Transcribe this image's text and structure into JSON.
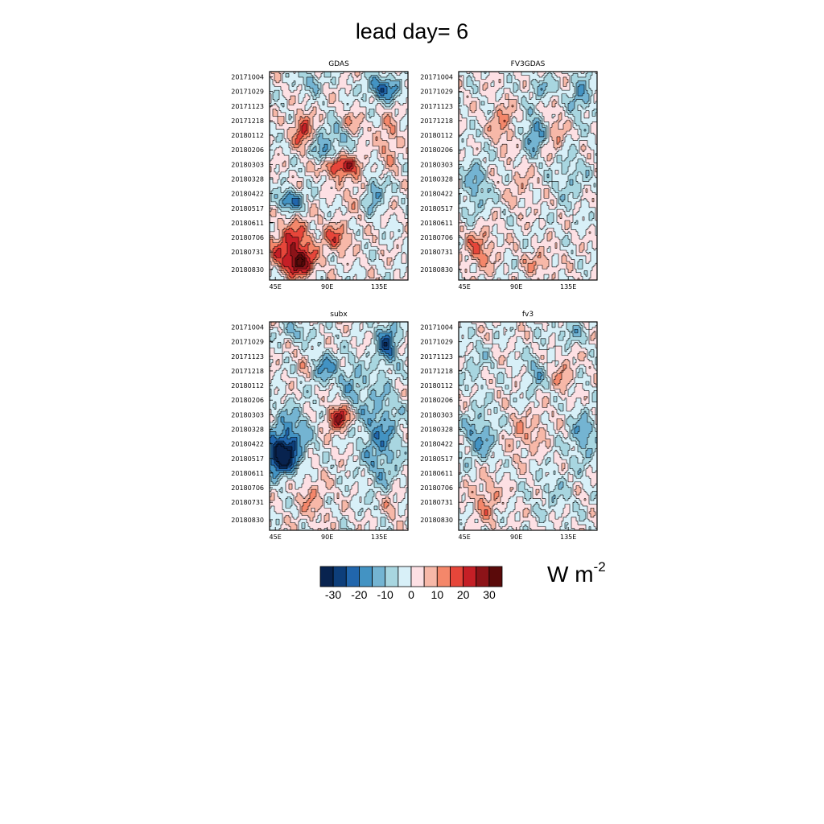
{
  "title": "lead day= 6",
  "units": {
    "base": "W m",
    "exponent": "-2"
  },
  "chart_data": {
    "type": "heatmap",
    "title": "lead day= 6",
    "x_axis": {
      "ticks": [
        "45E",
        "90E",
        "135E"
      ],
      "tick_values_deg_east": [
        45,
        90,
        135
      ],
      "range_deg_east": [
        40,
        160
      ]
    },
    "y_axis": {
      "ticks": [
        "20171004",
        "20171029",
        "20171123",
        "20171218",
        "20180112",
        "20180206",
        "20180303",
        "20180328",
        "20180422",
        "20180517",
        "20180611",
        "20180706",
        "20180731",
        "20180830"
      ],
      "range": [
        "20170925",
        "20180917"
      ]
    },
    "colorbar": {
      "levels": [
        -35,
        -30,
        -25,
        -20,
        -15,
        -10,
        -5,
        0,
        5,
        10,
        15,
        20,
        25,
        30,
        35
      ],
      "labels": [
        "-30",
        "-20",
        "-10",
        "0",
        "10",
        "20",
        "30"
      ],
      "colors": [
        "#08234f",
        "#0d3e7a",
        "#2166ac",
        "#4393c3",
        "#74b4d2",
        "#a8d6e0",
        "#d8f0f8",
        "#fde0e4",
        "#f7b8a8",
        "#f4876a",
        "#e6463a",
        "#c51f26",
        "#8c1318",
        "#5a0a0a"
      ],
      "units": "W m-2"
    },
    "panels": [
      {
        "name": "GDAS",
        "blobs": [
          [
            0.15,
            0.62,
            0.1,
            0.05,
            -22
          ],
          [
            0.75,
            0.58,
            0.08,
            0.08,
            -16
          ],
          [
            0.38,
            0.4,
            0.08,
            0.07,
            -18
          ],
          [
            0.5,
            0.3,
            0.1,
            0.07,
            -15
          ],
          [
            0.82,
            0.08,
            0.12,
            0.06,
            -22
          ],
          [
            0.3,
            0.05,
            0.08,
            0.05,
            -12
          ],
          [
            0.24,
            0.28,
            0.07,
            0.08,
            20
          ],
          [
            0.48,
            0.45,
            0.15,
            0.05,
            24
          ],
          [
            0.58,
            0.26,
            0.1,
            0.06,
            12
          ],
          [
            0.12,
            0.85,
            0.15,
            0.1,
            14
          ],
          [
            0.22,
            0.92,
            0.1,
            0.06,
            26
          ],
          [
            0.48,
            0.8,
            0.1,
            0.07,
            16
          ],
          [
            0.62,
            0.55,
            0.1,
            0.1,
            8
          ],
          [
            0.86,
            0.33,
            0.08,
            0.12,
            10
          ],
          [
            0.2,
            0.8,
            0.12,
            0.12,
            10
          ]
        ]
      },
      {
        "name": "FV3GDAS",
        "blobs": [
          [
            0.12,
            0.55,
            0.1,
            0.14,
            -12
          ],
          [
            0.55,
            0.3,
            0.08,
            0.09,
            -18
          ],
          [
            0.88,
            0.12,
            0.08,
            0.1,
            -14
          ],
          [
            0.6,
            0.08,
            0.1,
            0.05,
            -10
          ],
          [
            0.8,
            0.5,
            0.12,
            0.14,
            -8
          ],
          [
            0.32,
            0.25,
            0.08,
            0.1,
            12
          ],
          [
            0.7,
            0.3,
            0.07,
            0.1,
            10
          ],
          [
            0.15,
            0.85,
            0.1,
            0.1,
            14
          ],
          [
            0.58,
            0.92,
            0.1,
            0.06,
            10
          ],
          [
            0.45,
            0.55,
            0.1,
            0.1,
            6
          ]
        ]
      },
      {
        "name": "subx",
        "blobs": [
          [
            0.08,
            0.65,
            0.1,
            0.08,
            -35
          ],
          [
            0.15,
            0.55,
            0.14,
            0.14,
            -18
          ],
          [
            0.85,
            0.1,
            0.08,
            0.1,
            -22
          ],
          [
            0.8,
            0.55,
            0.14,
            0.25,
            -16
          ],
          [
            0.6,
            0.3,
            0.1,
            0.12,
            -10
          ],
          [
            0.4,
            0.22,
            0.1,
            0.08,
            -15
          ],
          [
            0.2,
            0.05,
            0.12,
            0.05,
            -10
          ],
          [
            0.5,
            0.46,
            0.08,
            0.06,
            26
          ],
          [
            0.25,
            0.2,
            0.06,
            0.07,
            6
          ],
          [
            0.3,
            0.85,
            0.1,
            0.12,
            8
          ],
          [
            0.88,
            0.88,
            0.07,
            0.08,
            8
          ]
        ]
      },
      {
        "name": "fv3",
        "blobs": [
          [
            0.15,
            0.55,
            0.12,
            0.12,
            -14
          ],
          [
            0.9,
            0.55,
            0.1,
            0.12,
            -14
          ],
          [
            0.55,
            0.25,
            0.08,
            0.1,
            -10
          ],
          [
            0.8,
            0.05,
            0.1,
            0.06,
            -10
          ],
          [
            0.7,
            0.82,
            0.14,
            0.12,
            -6
          ],
          [
            0.12,
            0.2,
            0.1,
            0.12,
            -6
          ],
          [
            0.2,
            0.85,
            0.1,
            0.12,
            10
          ],
          [
            0.45,
            0.55,
            0.1,
            0.1,
            8
          ],
          [
            0.75,
            0.25,
            0.08,
            0.1,
            8
          ],
          [
            0.58,
            0.5,
            0.06,
            0.1,
            6
          ]
        ]
      }
    ]
  }
}
